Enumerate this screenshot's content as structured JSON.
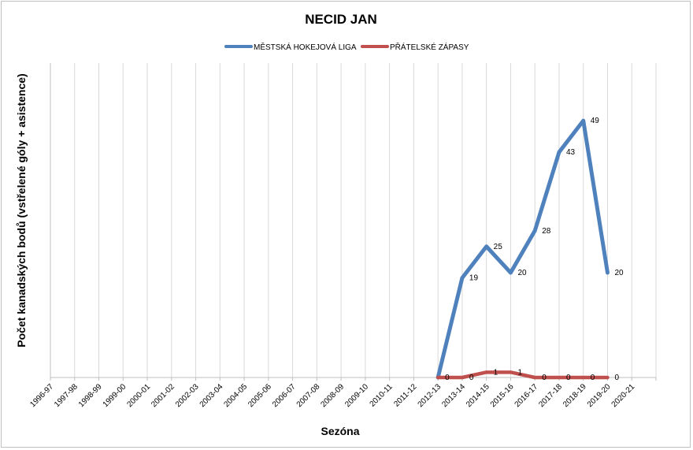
{
  "chart_data": {
    "type": "line",
    "title": "NECID JAN",
    "xlabel": "Sezóna",
    "ylabel": "Počet kanadských bodů (vstřelené góly + asistence)",
    "categories": [
      "1996-97",
      "1997-98",
      "1998-99",
      "1999-00",
      "2000-01",
      "2001-02",
      "2002-03",
      "2003-04",
      "2004-05",
      "2005-06",
      "2006-07",
      "2007-08",
      "2008-09",
      "2009-10",
      "2010-11",
      "2011-12",
      "2012-13",
      "2013-14",
      "2014-15",
      "2015-16",
      "2016-17",
      "2017-18",
      "2018-19",
      "2019-20",
      "2020-21"
    ],
    "ylim": [
      0,
      60
    ],
    "grid": "vertical",
    "legend_position": "top",
    "series": [
      {
        "name": "MĚSTSKÁ HOKEJOVÁ LIGA",
        "color": "#4f81bd",
        "values": [
          null,
          null,
          null,
          null,
          null,
          null,
          null,
          null,
          null,
          null,
          null,
          null,
          null,
          null,
          null,
          null,
          0,
          19,
          25,
          20,
          28,
          43,
          49,
          20,
          null
        ],
        "labels": [
          null,
          null,
          null,
          null,
          null,
          null,
          null,
          null,
          null,
          null,
          null,
          null,
          null,
          null,
          null,
          null,
          null,
          "19",
          "25",
          "20",
          "28",
          "43",
          "49",
          "20",
          null
        ]
      },
      {
        "name": "PŘÁTELSKÉ ZÁPASY",
        "color": "#c0504d",
        "values": [
          null,
          null,
          null,
          null,
          null,
          null,
          null,
          null,
          null,
          null,
          null,
          null,
          null,
          null,
          null,
          null,
          0,
          0,
          1,
          1,
          0,
          0,
          0,
          0,
          null
        ],
        "labels": [
          null,
          null,
          null,
          null,
          null,
          null,
          null,
          null,
          null,
          null,
          null,
          null,
          null,
          null,
          null,
          null,
          "0",
          "0",
          "1",
          "1",
          "0",
          "0",
          "0",
          "0",
          null
        ]
      }
    ]
  }
}
